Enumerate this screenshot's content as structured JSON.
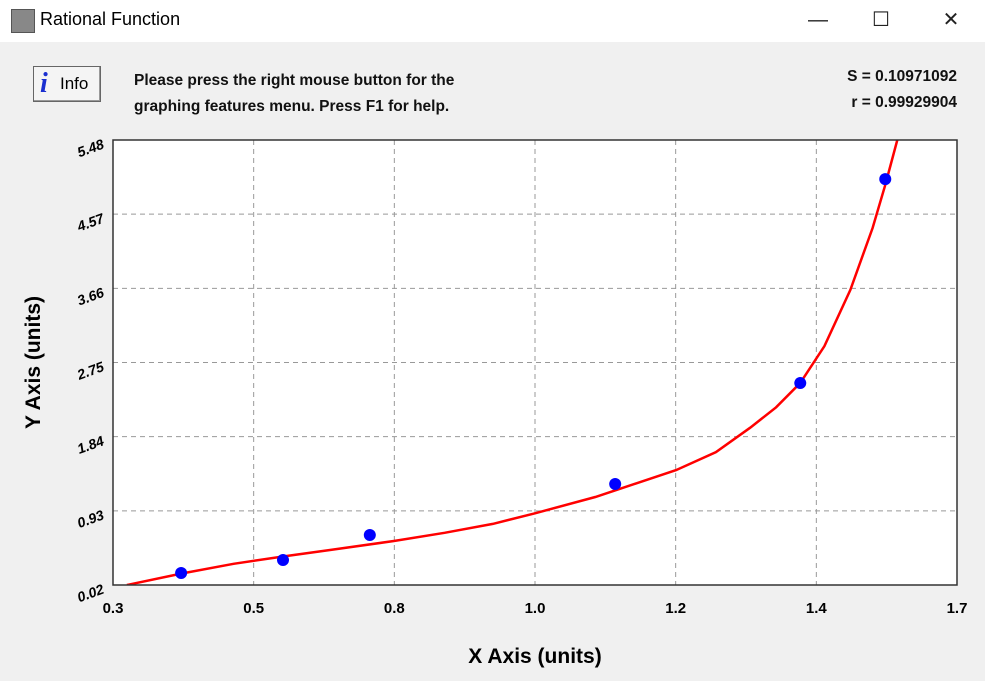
{
  "window": {
    "title": "Rational Function",
    "minimize": "—",
    "maximize": "☐",
    "close": "✕"
  },
  "toolbar": {
    "info_label": "Info",
    "info_icon": "info-icon",
    "message_line1": "Please press the right mouse button for the",
    "message_line2": "graphing features menu.  Press F1 for help."
  },
  "stats": {
    "s": "S = 0.10971092",
    "r": "r = 0.99929904"
  },
  "chart_data": {
    "type": "scatter",
    "xlabel": "X Axis (units)",
    "ylabel": "Y Axis (units)",
    "xlim": [
      0.3,
      1.7
    ],
    "ylim": [
      0.02,
      5.48
    ],
    "xticks": [
      "0.3",
      "0.5",
      "0.8",
      "1.0",
      "1.2",
      "1.4",
      "1.7"
    ],
    "yticks": [
      "0.02",
      "0.93",
      "1.84",
      "2.75",
      "3.66",
      "4.57",
      "5.48"
    ],
    "grid": true,
    "points": {
      "color": "#0000ff",
      "x": [
        0.413,
        0.582,
        0.726,
        1.133,
        1.44,
        1.581
      ],
      "y": [
        0.167,
        0.327,
        0.633,
        1.259,
        2.498,
        5.0
      ]
    },
    "fit_curve": {
      "color": "#ff0000",
      "x": [
        0.323,
        0.413,
        0.5,
        0.582,
        0.66,
        0.766,
        0.85,
        0.93,
        1.0,
        1.1,
        1.234,
        1.3,
        1.357,
        1.4,
        1.44,
        1.48,
        1.523,
        1.56,
        1.581,
        1.601
      ],
      "y": [
        0.02,
        0.16,
        0.28,
        0.37,
        0.45,
        0.56,
        0.66,
        0.77,
        0.9,
        1.1,
        1.43,
        1.65,
        1.95,
        2.2,
        2.5,
        2.95,
        3.64,
        4.4,
        4.93,
        5.48
      ]
    }
  }
}
